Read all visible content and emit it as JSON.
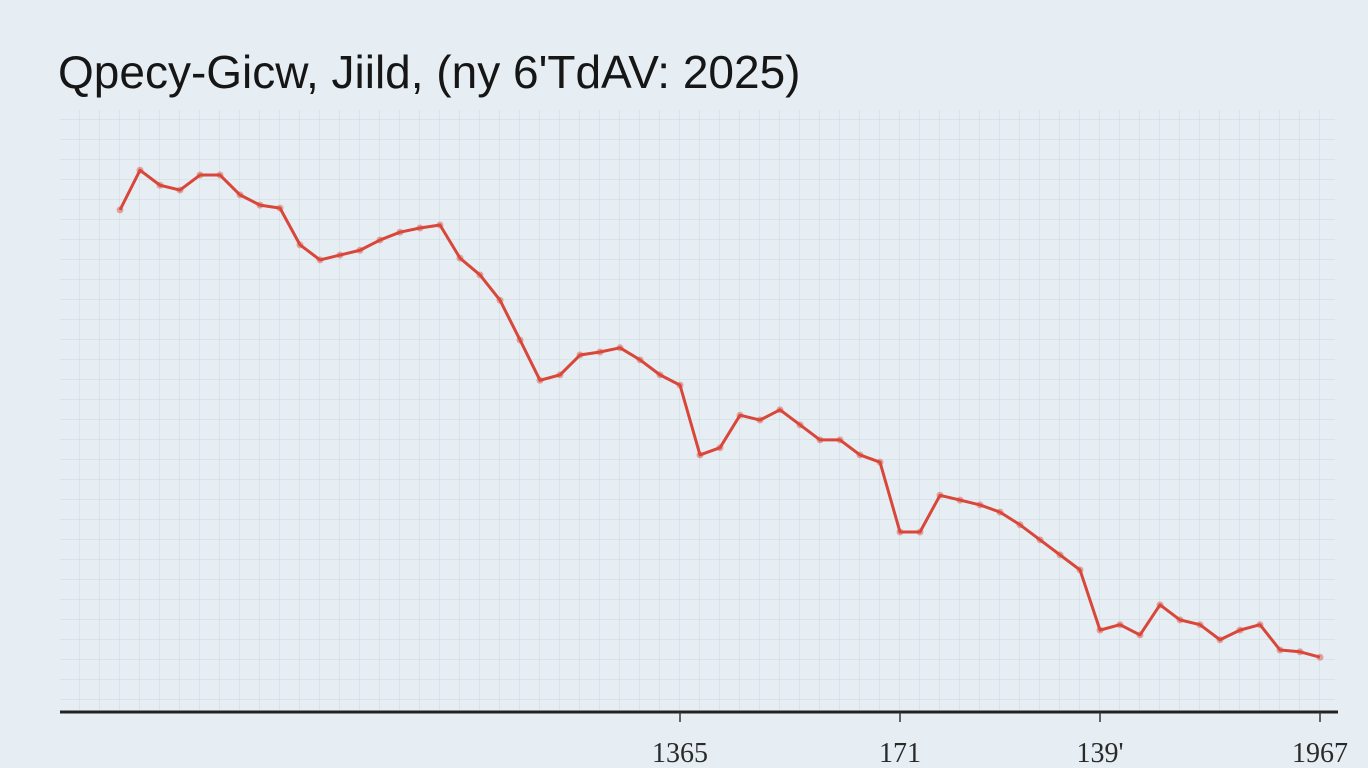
{
  "chart_data": {
    "type": "line",
    "title": "Qpecy-Gicw, Jiild, (ny 6'TdAV: 2025)",
    "categories": [
      null,
      null,
      null,
      null,
      null,
      null,
      null,
      null,
      null,
      null,
      null,
      null,
      null,
      null,
      null,
      null,
      null,
      null,
      null,
      null,
      null,
      null,
      null,
      null,
      null,
      null,
      null,
      null,
      "1365",
      null,
      null,
      null,
      null,
      null,
      null,
      null,
      null,
      null,
      null,
      "171",
      null,
      null,
      null,
      null,
      null,
      null,
      null,
      null,
      null,
      "139'",
      null,
      null,
      null,
      null,
      null,
      null,
      null,
      null,
      null,
      null,
      "1967"
    ],
    "series": [
      {
        "color": "#d9473a",
        "values": [
          83.4,
          90.0,
          87.5,
          86.7,
          89.2,
          89.2,
          85.9,
          84.2,
          83.7,
          77.6,
          75.1,
          75.9,
          76.7,
          78.4,
          79.7,
          80.4,
          80.9,
          75.4,
          72.6,
          68.4,
          61.8,
          55.1,
          56.0,
          59.3,
          59.8,
          60.5,
          58.5,
          56.0,
          54.3,
          42.7,
          43.9,
          49.3,
          48.5,
          50.2,
          47.7,
          45.2,
          45.2,
          42.7,
          41.5,
          29.9,
          29.9,
          36.0,
          35.2,
          34.4,
          33.2,
          31.1,
          28.6,
          26.1,
          23.6,
          13.6,
          14.5,
          12.8,
          17.8,
          15.3,
          14.5,
          12.0,
          13.6,
          14.5,
          10.3,
          10.0,
          9.1
        ]
      }
    ],
    "ylim": [
      0,
      100
    ],
    "grid": true
  }
}
